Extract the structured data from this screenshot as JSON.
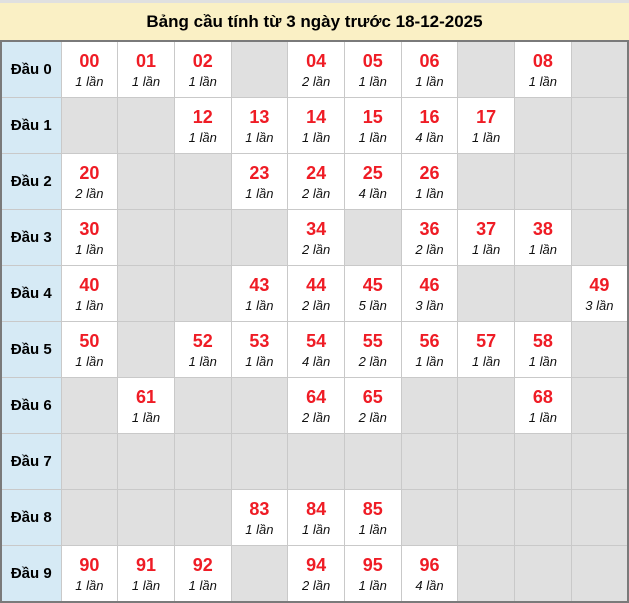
{
  "title": "Bảng cầu tính từ 3 ngày trước 18-12-2025",
  "colors": {
    "title_bar_bg": "#faf0c5",
    "row_header_bg": "#d6eaf5",
    "filled_cell_bg": "#ffffff",
    "empty_cell_bg": "#e0e0e0",
    "number_red": "#ef1c25",
    "outer_border": "#7a7a7a",
    "grid_border": "#c9c9c9"
  },
  "table": {
    "row_header_prefix": "Đầu",
    "count_unit": "lần",
    "rows": [
      {
        "label": "Đầu 0",
        "cells": [
          {
            "num": "00",
            "count": "1 lần"
          },
          {
            "num": "01",
            "count": "1 lần"
          },
          {
            "num": "02",
            "count": "1 lần"
          },
          null,
          {
            "num": "04",
            "count": "2 lần"
          },
          {
            "num": "05",
            "count": "1 lần"
          },
          {
            "num": "06",
            "count": "1 lần"
          },
          null,
          {
            "num": "08",
            "count": "1 lần"
          },
          null
        ]
      },
      {
        "label": "Đầu 1",
        "cells": [
          null,
          null,
          {
            "num": "12",
            "count": "1 lần"
          },
          {
            "num": "13",
            "count": "1 lần"
          },
          {
            "num": "14",
            "count": "1 lần"
          },
          {
            "num": "15",
            "count": "1 lần"
          },
          {
            "num": "16",
            "count": "4 lần"
          },
          {
            "num": "17",
            "count": "1 lần"
          },
          null,
          null
        ]
      },
      {
        "label": "Đầu 2",
        "cells": [
          {
            "num": "20",
            "count": "2 lần"
          },
          null,
          null,
          {
            "num": "23",
            "count": "1 lần"
          },
          {
            "num": "24",
            "count": "2 lần"
          },
          {
            "num": "25",
            "count": "4 lần"
          },
          {
            "num": "26",
            "count": "1 lần"
          },
          null,
          null,
          null
        ]
      },
      {
        "label": "Đầu 3",
        "cells": [
          {
            "num": "30",
            "count": "1 lần"
          },
          null,
          null,
          null,
          {
            "num": "34",
            "count": "2 lần"
          },
          null,
          {
            "num": "36",
            "count": "2 lần"
          },
          {
            "num": "37",
            "count": "1 lần"
          },
          {
            "num": "38",
            "count": "1 lần"
          },
          null
        ]
      },
      {
        "label": "Đầu 4",
        "cells": [
          {
            "num": "40",
            "count": "1 lần"
          },
          null,
          null,
          {
            "num": "43",
            "count": "1 lần"
          },
          {
            "num": "44",
            "count": "2 lần"
          },
          {
            "num": "45",
            "count": "5 lần"
          },
          {
            "num": "46",
            "count": "3 lần"
          },
          null,
          null,
          {
            "num": "49",
            "count": "3 lần"
          }
        ]
      },
      {
        "label": "Đầu 5",
        "cells": [
          {
            "num": "50",
            "count": "1 lần"
          },
          null,
          {
            "num": "52",
            "count": "1 lần"
          },
          {
            "num": "53",
            "count": "1 lần"
          },
          {
            "num": "54",
            "count": "4 lần"
          },
          {
            "num": "55",
            "count": "2 lần"
          },
          {
            "num": "56",
            "count": "1 lần"
          },
          {
            "num": "57",
            "count": "1 lần"
          },
          {
            "num": "58",
            "count": "1 lần"
          },
          null
        ]
      },
      {
        "label": "Đầu 6",
        "cells": [
          null,
          {
            "num": "61",
            "count": "1 lần"
          },
          null,
          null,
          {
            "num": "64",
            "count": "2 lần"
          },
          {
            "num": "65",
            "count": "2 lần"
          },
          null,
          null,
          {
            "num": "68",
            "count": "1 lần"
          },
          null
        ]
      },
      {
        "label": "Đầu 7",
        "cells": [
          null,
          null,
          null,
          null,
          null,
          null,
          null,
          null,
          null,
          null
        ]
      },
      {
        "label": "Đầu 8",
        "cells": [
          null,
          null,
          null,
          {
            "num": "83",
            "count": "1 lần"
          },
          {
            "num": "84",
            "count": "1 lần"
          },
          {
            "num": "85",
            "count": "1 lần"
          },
          null,
          null,
          null,
          null
        ]
      },
      {
        "label": "Đầu 9",
        "cells": [
          {
            "num": "90",
            "count": "1 lần"
          },
          {
            "num": "91",
            "count": "1 lần"
          },
          {
            "num": "92",
            "count": "1 lần"
          },
          null,
          {
            "num": "94",
            "count": "2 lần"
          },
          {
            "num": "95",
            "count": "1 lần"
          },
          {
            "num": "96",
            "count": "4 lần"
          },
          null,
          null,
          null
        ]
      }
    ]
  }
}
